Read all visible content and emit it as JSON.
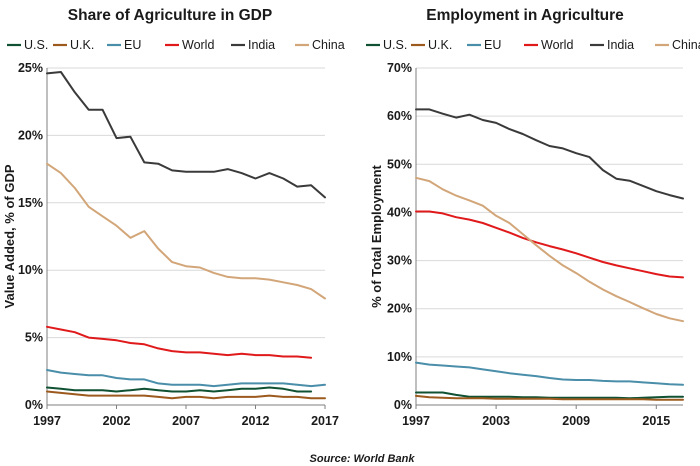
{
  "source": "Source: World Bank",
  "chart_data": [
    {
      "type": "line",
      "title": "Share of Agriculture in GDP",
      "ylabel": "Value Added, % of GDP",
      "xlabel": "",
      "xlim": [
        1997,
        2017
      ],
      "ylim": [
        0,
        25
      ],
      "x_ticks": [
        1997,
        2002,
        2007,
        2012,
        2017
      ],
      "y_ticks": [
        0,
        5,
        10,
        15,
        20,
        25
      ],
      "y_tick_labels": [
        "0%",
        "5%",
        "10%",
        "15%",
        "20%",
        "25%"
      ],
      "grid": "horizontal",
      "legend": "top",
      "series": [
        {
          "name": "U.S.",
          "color": "#0f5132",
          "x": [
            1997,
            1998,
            1999,
            2000,
            2001,
            2002,
            2003,
            2004,
            2005,
            2006,
            2007,
            2008,
            2009,
            2010,
            2011,
            2012,
            2013,
            2014,
            2015,
            2016
          ],
          "values": [
            1.3,
            1.2,
            1.1,
            1.1,
            1.1,
            1.0,
            1.1,
            1.2,
            1.1,
            1.0,
            1.0,
            1.1,
            1.0,
            1.1,
            1.2,
            1.2,
            1.3,
            1.2,
            1.0,
            1.0
          ]
        },
        {
          "name": "U.K.",
          "color": "#9c5a1e",
          "x": [
            1997,
            1998,
            1999,
            2000,
            2001,
            2002,
            2003,
            2004,
            2005,
            2006,
            2007,
            2008,
            2009,
            2010,
            2011,
            2012,
            2013,
            2014,
            2015,
            2016,
            2017
          ],
          "values": [
            1.0,
            0.9,
            0.8,
            0.7,
            0.7,
            0.7,
            0.7,
            0.7,
            0.6,
            0.5,
            0.6,
            0.6,
            0.5,
            0.6,
            0.6,
            0.6,
            0.7,
            0.6,
            0.6,
            0.5,
            0.5
          ]
        },
        {
          "name": "EU",
          "color": "#4a8eaa",
          "x": [
            1997,
            1998,
            1999,
            2000,
            2001,
            2002,
            2003,
            2004,
            2005,
            2006,
            2007,
            2008,
            2009,
            2010,
            2011,
            2012,
            2013,
            2014,
            2015,
            2016,
            2017
          ],
          "values": [
            2.6,
            2.4,
            2.3,
            2.2,
            2.2,
            2.0,
            1.9,
            1.9,
            1.6,
            1.5,
            1.5,
            1.5,
            1.4,
            1.5,
            1.6,
            1.6,
            1.6,
            1.6,
            1.5,
            1.4,
            1.5
          ]
        },
        {
          "name": "World",
          "color": "#e0191b",
          "x": [
            1997,
            1998,
            1999,
            2000,
            2001,
            2002,
            2003,
            2004,
            2005,
            2006,
            2007,
            2008,
            2009,
            2010,
            2011,
            2012,
            2013,
            2014,
            2015,
            2016
          ],
          "values": [
            5.8,
            5.6,
            5.4,
            5.0,
            4.9,
            4.8,
            4.6,
            4.5,
            4.2,
            4.0,
            3.9,
            3.9,
            3.8,
            3.7,
            3.8,
            3.7,
            3.7,
            3.6,
            3.6,
            3.5
          ]
        },
        {
          "name": "India",
          "color": "#3a3a3a",
          "x": [
            1997,
            1998,
            1999,
            2000,
            2001,
            2002,
            2003,
            2004,
            2005,
            2006,
            2007,
            2008,
            2009,
            2010,
            2011,
            2012,
            2013,
            2014,
            2015,
            2016,
            2017
          ],
          "values": [
            24.6,
            24.7,
            23.2,
            21.9,
            21.9,
            19.8,
            19.9,
            18.0,
            17.9,
            17.4,
            17.3,
            17.3,
            17.3,
            17.5,
            17.2,
            16.8,
            17.2,
            16.8,
            16.2,
            16.3,
            15.4
          ]
        },
        {
          "name": "China",
          "color": "#d2a679",
          "x": [
            1997,
            1998,
            1999,
            2000,
            2001,
            2002,
            2003,
            2004,
            2005,
            2006,
            2007,
            2008,
            2009,
            2010,
            2011,
            2012,
            2013,
            2014,
            2015,
            2016,
            2017
          ],
          "values": [
            17.9,
            17.2,
            16.1,
            14.7,
            14.0,
            13.3,
            12.4,
            12.9,
            11.6,
            10.6,
            10.3,
            10.2,
            9.8,
            9.5,
            9.4,
            9.4,
            9.3,
            9.1,
            8.9,
            8.6,
            7.9
          ]
        }
      ]
    },
    {
      "type": "line",
      "title": "Employment in Agriculture",
      "ylabel": "% of Total Employment",
      "xlabel": "",
      "xlim": [
        1997,
        2017
      ],
      "ylim": [
        0,
        70
      ],
      "x_ticks": [
        1997,
        2003,
        2009,
        2015
      ],
      "y_ticks": [
        0,
        10,
        20,
        30,
        40,
        50,
        60,
        70
      ],
      "y_tick_labels": [
        "0%",
        "10%",
        "20%",
        "30%",
        "40%",
        "50%",
        "60%",
        "70%"
      ],
      "grid": "horizontal",
      "legend": "top",
      "series": [
        {
          "name": "U.S.",
          "color": "#0f5132",
          "x": [
            1997,
            1998,
            1999,
            2000,
            2001,
            2002,
            2003,
            2004,
            2005,
            2006,
            2007,
            2008,
            2009,
            2010,
            2011,
            2012,
            2013,
            2014,
            2015,
            2016,
            2017
          ],
          "values": [
            2.6,
            2.6,
            2.6,
            2.1,
            1.7,
            1.7,
            1.7,
            1.7,
            1.6,
            1.6,
            1.5,
            1.5,
            1.5,
            1.5,
            1.5,
            1.5,
            1.4,
            1.5,
            1.6,
            1.7,
            1.7
          ]
        },
        {
          "name": "U.K.",
          "color": "#9c5a1e",
          "x": [
            1997,
            1998,
            1999,
            2000,
            2001,
            2002,
            2003,
            2004,
            2005,
            2006,
            2007,
            2008,
            2009,
            2010,
            2011,
            2012,
            2013,
            2014,
            2015,
            2016,
            2017
          ],
          "values": [
            1.9,
            1.6,
            1.5,
            1.4,
            1.4,
            1.4,
            1.3,
            1.3,
            1.3,
            1.3,
            1.3,
            1.2,
            1.2,
            1.2,
            1.2,
            1.2,
            1.2,
            1.2,
            1.1,
            1.1,
            1.1
          ]
        },
        {
          "name": "EU",
          "color": "#4a8eaa",
          "x": [
            1997,
            1998,
            1999,
            2000,
            2001,
            2002,
            2003,
            2004,
            2005,
            2006,
            2007,
            2008,
            2009,
            2010,
            2011,
            2012,
            2013,
            2014,
            2015,
            2016,
            2017
          ],
          "values": [
            8.8,
            8.4,
            8.2,
            8.0,
            7.8,
            7.4,
            7.0,
            6.6,
            6.3,
            6.0,
            5.6,
            5.3,
            5.2,
            5.2,
            5.0,
            4.9,
            4.9,
            4.7,
            4.5,
            4.3,
            4.2
          ]
        },
        {
          "name": "World",
          "color": "#e0191b",
          "x": [
            1997,
            1998,
            1999,
            2000,
            2001,
            2002,
            2003,
            2004,
            2005,
            2006,
            2007,
            2008,
            2009,
            2010,
            2011,
            2012,
            2013,
            2014,
            2015,
            2016,
            2017
          ],
          "values": [
            40.2,
            40.2,
            39.8,
            39.0,
            38.5,
            37.8,
            36.8,
            35.8,
            34.7,
            33.8,
            33.0,
            32.3,
            31.5,
            30.6,
            29.7,
            29.0,
            28.4,
            27.8,
            27.2,
            26.7,
            26.5
          ]
        },
        {
          "name": "India",
          "color": "#3a3a3a",
          "x": [
            1997,
            1998,
            1999,
            2000,
            2001,
            2002,
            2003,
            2004,
            2005,
            2006,
            2007,
            2008,
            2009,
            2010,
            2011,
            2012,
            2013,
            2014,
            2015,
            2016,
            2017
          ],
          "values": [
            61.4,
            61.4,
            60.5,
            59.7,
            60.3,
            59.2,
            58.6,
            57.3,
            56.3,
            55.0,
            53.8,
            53.3,
            52.3,
            51.5,
            48.8,
            47.0,
            46.6,
            45.5,
            44.4,
            43.6,
            42.9
          ]
        },
        {
          "name": "China",
          "color": "#d2a679",
          "x": [
            1997,
            1998,
            1999,
            2000,
            2001,
            2002,
            2003,
            2004,
            2005,
            2006,
            2007,
            2008,
            2009,
            2010,
            2011,
            2012,
            2013,
            2014,
            2015,
            2016,
            2017
          ],
          "values": [
            47.2,
            46.5,
            44.8,
            43.5,
            42.5,
            41.4,
            39.3,
            37.8,
            35.5,
            33.2,
            31.0,
            29.0,
            27.4,
            25.6,
            24.0,
            22.6,
            21.4,
            20.1,
            18.9,
            18.0,
            17.4
          ]
        }
      ]
    }
  ]
}
